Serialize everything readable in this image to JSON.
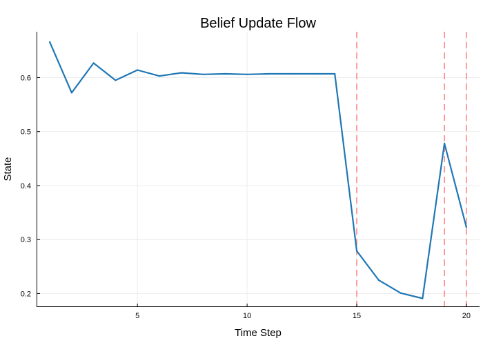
{
  "chart_data": {
    "type": "line",
    "title": "Belief Update Flow",
    "xlabel": "Time Step",
    "ylabel": "State",
    "xlim": [
      0.4,
      20.6
    ],
    "ylim": [
      0.175,
      0.685
    ],
    "xticks": [
      5,
      10,
      15,
      20
    ],
    "yticks": [
      0.2,
      0.3,
      0.4,
      0.5,
      0.6
    ],
    "grid": true,
    "legend": "none",
    "series": [
      {
        "color": "#1f77b4",
        "x": [
          1,
          2,
          3,
          4,
          5,
          6,
          7,
          8,
          9,
          10,
          11,
          12,
          13,
          14,
          15,
          16,
          17,
          18,
          19,
          20
        ],
        "y": [
          0.666,
          0.572,
          0.627,
          0.595,
          0.614,
          0.603,
          0.609,
          0.606,
          0.607,
          0.606,
          0.607,
          0.607,
          0.607,
          0.607,
          0.279,
          0.225,
          0.201,
          0.191,
          0.478,
          0.323
        ]
      }
    ],
    "vlines": {
      "x": [
        15,
        19,
        20
      ],
      "color": "#ff8080",
      "style": "dashed"
    }
  }
}
